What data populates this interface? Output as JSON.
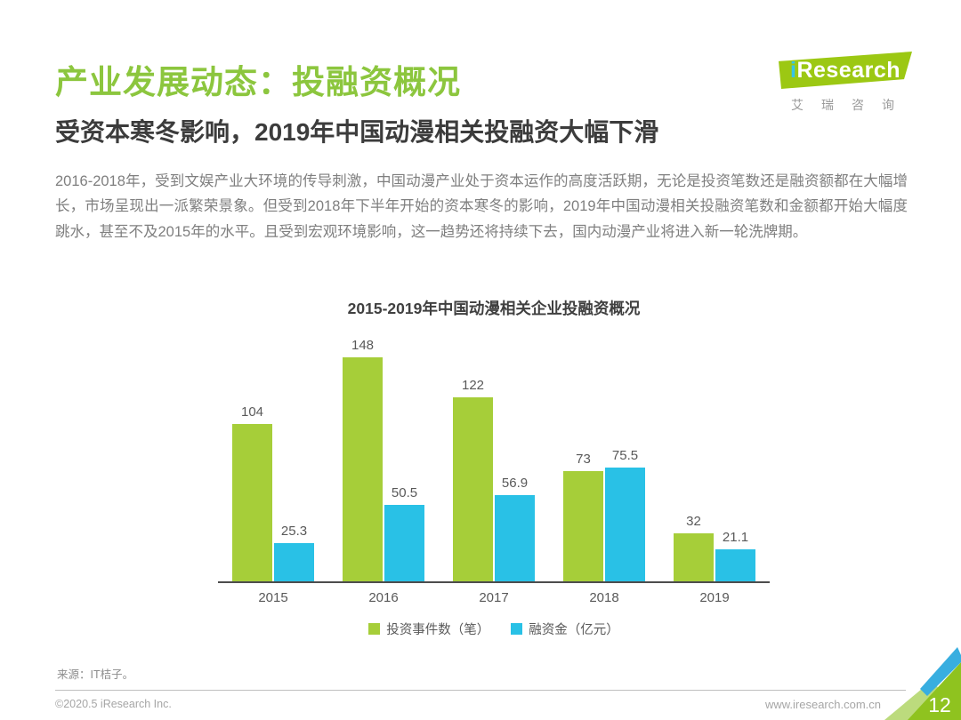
{
  "page": {
    "title": "产业发展动态：投融资概况",
    "subtitle": "受资本寒冬影响，2019年中国动漫相关投融资大幅下滑",
    "paragraph": "2016-2018年，受到文娱产业大环境的传导刺激，中国动漫产业处于资本运作的高度活跃期，无论是投资笔数还是融资额都在大幅增长，市场呈现出一派繁荣景象。但受到2018年下半年开始的资本寒冬的影响，2019年中国动漫相关投融资笔数和金额都开始大幅度跳水，甚至不及2015年的水平。且受到宏观环境影响，这一趋势还将持续下去，国内动漫产业将进入新一轮洗牌期。"
  },
  "logo": {
    "brand": "iResearch",
    "subtext": "艾瑞咨询"
  },
  "chart_data": {
    "type": "bar",
    "title": "2015-2019年中国动漫相关企业投融资概况",
    "categories": [
      "2015",
      "2016",
      "2017",
      "2018",
      "2019"
    ],
    "series": [
      {
        "name": "投资事件数（笔）",
        "color": "#A6CE39",
        "values": [
          104,
          148,
          122,
          73,
          32
        ]
      },
      {
        "name": "融资金（亿元）",
        "color": "#29C1E6",
        "values": [
          25.3,
          50.5,
          56.9,
          75.5,
          21.1
        ]
      }
    ],
    "ylim": [
      0,
      160
    ],
    "xlabel": "",
    "ylabel": "",
    "grid": false,
    "legend_position": "bottom",
    "data_labels": true
  },
  "footer": {
    "source": "来源：IT桔子。",
    "copyright": "©2020.5 iResearch Inc.",
    "website": "www.iresearch.com.cn",
    "page_number": "12"
  },
  "colors": {
    "title_green": "#8CC63E",
    "bar_green": "#A6CE39",
    "bar_blue": "#29C1E6",
    "corner_green": "#8FC31F",
    "corner_light_green": "#BCDB7D",
    "corner_blue": "#38AEE0"
  }
}
